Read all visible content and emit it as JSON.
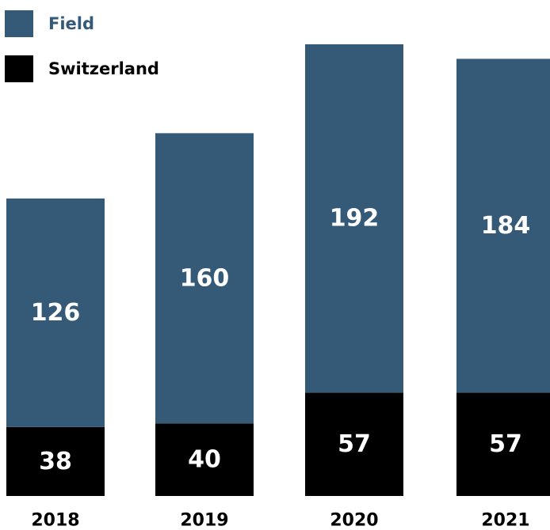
{
  "chart_data": {
    "type": "bar",
    "stacked": true,
    "categories": [
      "2018",
      "2019",
      "2020",
      "2021"
    ],
    "series": [
      {
        "name": "Switzerland",
        "values": [
          38,
          40,
          57,
          57
        ],
        "color": "#000000",
        "label_color": "#ffffff"
      },
      {
        "name": "Field",
        "values": [
          126,
          160,
          192,
          184
        ],
        "color": "#345a78",
        "label_color": "#ffffff"
      }
    ],
    "legend": {
      "position": "top-left"
    },
    "title": "",
    "xlabel": "",
    "ylabel": "",
    "ylim": [
      0,
      249
    ],
    "grid": false,
    "axes_visible": false
  }
}
